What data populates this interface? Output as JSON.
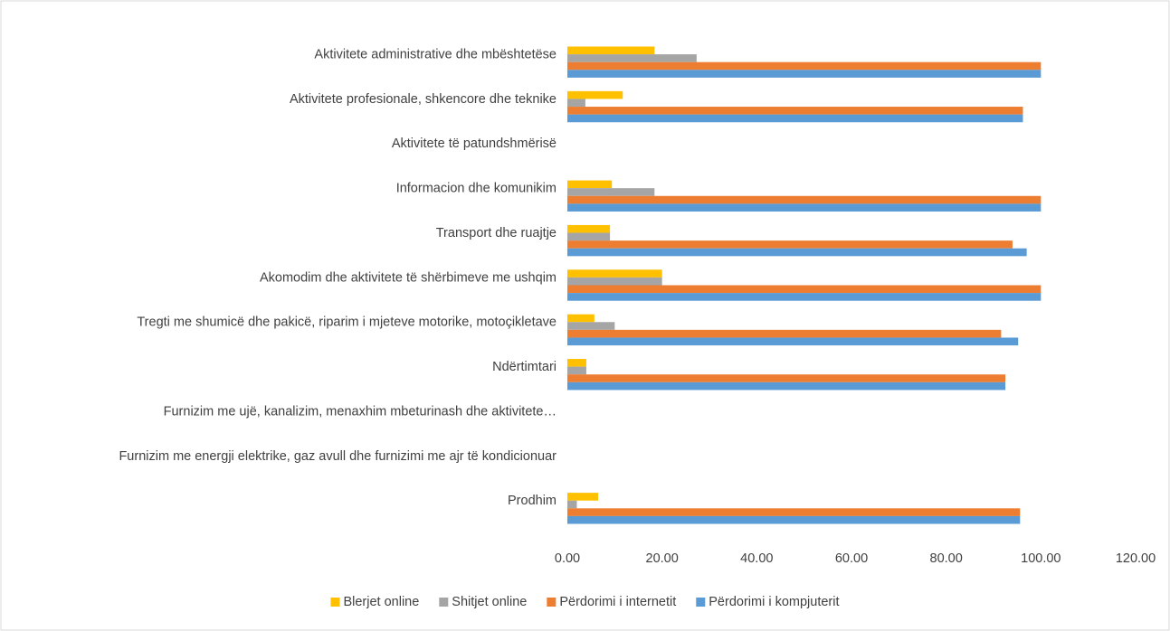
{
  "chart_data": {
    "type": "bar",
    "orientation": "horizontal",
    "categories": [
      "Prodhim",
      "Furnizim me energji elektrike, gaz avull dhe furnizimi me ajr të kondicionuar",
      "Furnizim me ujë, kanalizim, menaxhim mbeturinash dhe aktivitete…",
      "Ndërtimtari",
      "Tregti me shumicë dhe pakicë, riparim i mjeteve motorike, motoçikletave",
      "Akomodim dhe aktivitete të shërbimeve me ushqim",
      "Transport dhe ruajtje",
      "Informacion dhe komunikim",
      "Aktivitete të patundshmërisë",
      "Aktivitete profesionale, shkencore dhe teknike",
      "Aktivitete administrative dhe mbështetëse"
    ],
    "series": [
      {
        "name": "Blerjet online",
        "color": "#ffc000",
        "values": [
          6.5,
          null,
          null,
          4,
          5.7,
          20,
          9,
          9.4,
          null,
          11.7,
          18.4
        ]
      },
      {
        "name": "Shitjet online",
        "color": "#a5a5a5",
        "values": [
          2,
          null,
          null,
          4,
          10,
          20,
          9,
          18.4,
          null,
          3.8,
          27.3
        ]
      },
      {
        "name": "Përdorimi i internetit",
        "color": "#ed7d31",
        "values": [
          95.6,
          null,
          null,
          92.5,
          91.6,
          100,
          94,
          100,
          null,
          96.2,
          100
        ]
      },
      {
        "name": "Përdorimi i kompjuterit",
        "color": "#5b9bd5",
        "values": [
          95.6,
          null,
          null,
          92.5,
          95.2,
          100,
          97,
          100,
          null,
          96.2,
          100
        ]
      }
    ],
    "xlim": [
      0,
      120
    ],
    "xticks": [
      {
        "value": 0,
        "label": "0.00"
      },
      {
        "value": 20,
        "label": "20.00"
      },
      {
        "value": 40,
        "label": "40.00"
      },
      {
        "value": 60,
        "label": "60.00"
      },
      {
        "value": 80,
        "label": "80.00"
      },
      {
        "value": 100,
        "label": "100.00"
      },
      {
        "value": 120,
        "label": "120.00"
      }
    ],
    "grid": false,
    "legend": "bottom"
  }
}
